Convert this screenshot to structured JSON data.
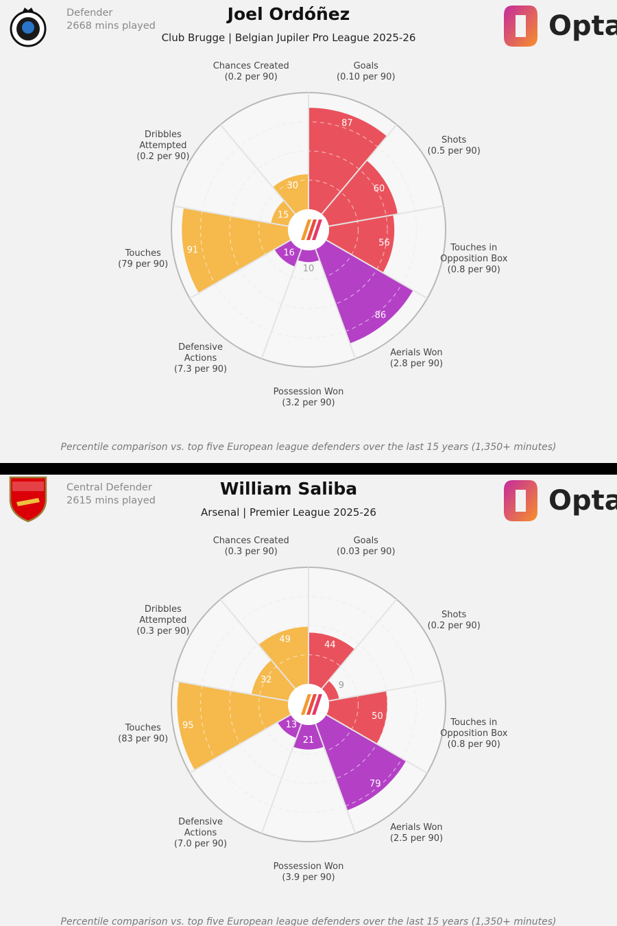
{
  "chart_data": [
    {
      "type": "pizza",
      "title": "Joel Ordóñez",
      "subtitle": "Club Brugge | Belgian Jupiler Pro League 2025-26",
      "position": "Defender",
      "minutes": "2668 mins played",
      "brand": "Opta",
      "categories": [
        "Goals",
        "Shots",
        "Touches in Opposition Box",
        "Aerials Won",
        "Possession Won",
        "Defensive Actions",
        "Touches",
        "Dribbles Attempted",
        "Chances Created"
      ],
      "per90": [
        "(0.10 per 90)",
        "(0.5 per 90)",
        "(0.8 per 90)",
        "(2.8 per 90)",
        "(3.2 per 90)",
        "(7.3 per 90)",
        "(79 per 90)",
        "(0.2 per 90)",
        "(0.2 per 90)"
      ],
      "values": [
        87,
        60,
        56,
        86,
        10,
        16,
        91,
        15,
        30
      ],
      "colors": [
        "#e9525c",
        "#e9525c",
        "#e9525c",
        "#b440c6",
        "#b440c6",
        "#b440c6",
        "#f5b94c",
        "#f5b94c",
        "#f5b94c"
      ],
      "rlim": [
        0,
        100
      ],
      "rticks": [
        25,
        50,
        75
      ],
      "footnote": "Percentile comparison vs. top five European league defenders over the last 15 years (1,350+ minutes)"
    },
    {
      "type": "pizza",
      "title": "William Saliba",
      "subtitle": "Arsenal | Premier League 2025-26",
      "position": "Central Defender",
      "minutes": "2615 mins played",
      "brand": "Opta",
      "categories": [
        "Goals",
        "Shots",
        "Touches in Opposition Box",
        "Aerials Won",
        "Possession Won",
        "Defensive Actions",
        "Touches",
        "Dribbles Attempted",
        "Chances Created"
      ],
      "per90": [
        "(0.03 per 90)",
        "(0.2 per 90)",
        "(0.8 per 90)",
        "(2.5 per 90)",
        "(3.9 per 90)",
        "(7.0 per 90)",
        "(83 per 90)",
        "(0.3 per 90)",
        "(0.3 per 90)"
      ],
      "values": [
        44,
        9,
        50,
        79,
        21,
        13,
        95,
        32,
        49
      ],
      "colors": [
        "#e9525c",
        "#e9525c",
        "#e9525c",
        "#b440c6",
        "#b440c6",
        "#b440c6",
        "#f5b94c",
        "#f5b94c",
        "#f5b94c"
      ],
      "rlim": [
        0,
        100
      ],
      "rticks": [
        25,
        50,
        75
      ],
      "footnote": "Percentile comparison vs. top five European league defenders over the last 15 years (1,350+ minutes)"
    }
  ]
}
